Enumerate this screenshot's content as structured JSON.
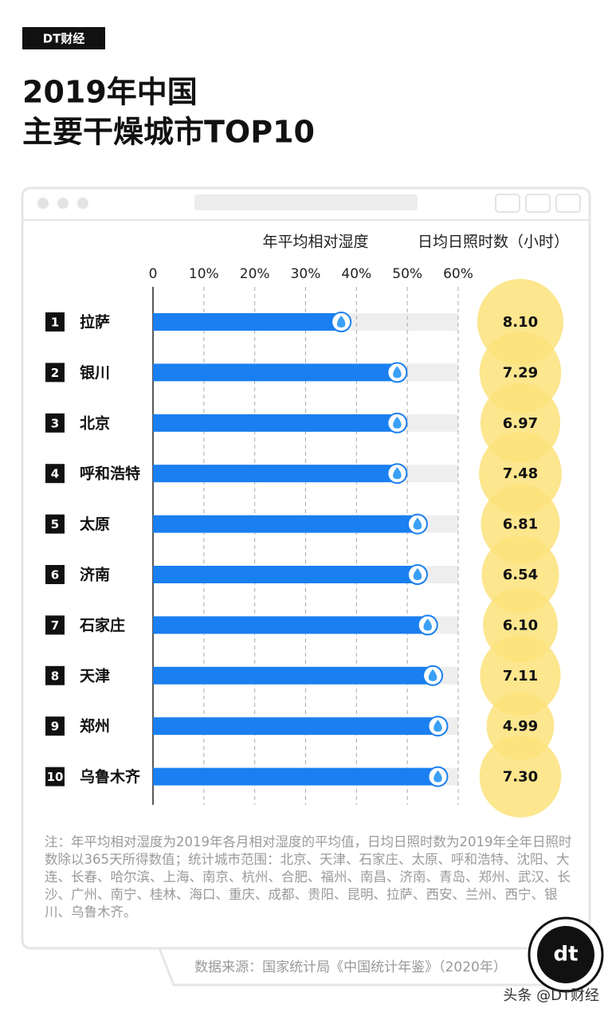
{
  "brand": "DT财经",
  "chart_data": {
    "type": "bar",
    "orientation": "horizontal",
    "title": [
      "2019年中国",
      "主要干燥城市TOP10"
    ],
    "ranks": [
      "1",
      "2",
      "3",
      "4",
      "5",
      "6",
      "7",
      "8",
      "9",
      "10"
    ],
    "categories": [
      "拉萨",
      "银川",
      "北京",
      "呼和浩特",
      "太原",
      "济南",
      "石家庄",
      "天津",
      "郑州",
      "乌鲁木齐"
    ],
    "series": [
      {
        "name": "年平均相对湿度",
        "color": "#1a7ff0",
        "values": [
          37,
          48,
          48,
          48,
          52,
          52,
          54,
          55,
          56,
          56
        ]
      },
      {
        "name": "日均日照时数（小时）",
        "color": "#fbe27a",
        "values": [
          8.1,
          7.29,
          6.97,
          7.48,
          6.81,
          6.54,
          6.1,
          7.11,
          4.99,
          7.3
        ],
        "value_labels": [
          "8.10",
          "7.29",
          "6.97",
          "7.48",
          "6.81",
          "6.54",
          "6.10",
          "7.11",
          "4.99",
          "7.30"
        ]
      }
    ],
    "xlim": [
      0,
      60
    ],
    "xticks": [
      0,
      {
        "value": 10,
        "label": "10%"
      },
      {
        "value": 20,
        "label": "20%"
      },
      {
        "value": 30,
        "label": "30%"
      },
      {
        "value": 40,
        "label": "40%"
      },
      {
        "value": 50,
        "label": "50%"
      },
      {
        "value": 60,
        "label": "60%"
      }
    ],
    "grid": true
  },
  "note": "注：年平均相对湿度为2019年各月相对湿度的平均值，日均日照时数为2019年全年日照时数除以365天所得数值；统计城市范围：北京、天津、石家庄、太原、呼和浩特、沈阳、大连、长春、哈尔滨、上海、南京、杭州、合肥、福州、南昌、济南、青岛、郑州、武汉、长沙、广州、南宁、桂林、海口、重庆、成都、贵阳、昆明、拉萨、西安、兰州、西宁、银川、乌鲁木齐。",
  "source": "数据来源：国家统计局《中国统计年鉴》（2020年）",
  "logo": "dt",
  "credit": "头条 @DT财经"
}
